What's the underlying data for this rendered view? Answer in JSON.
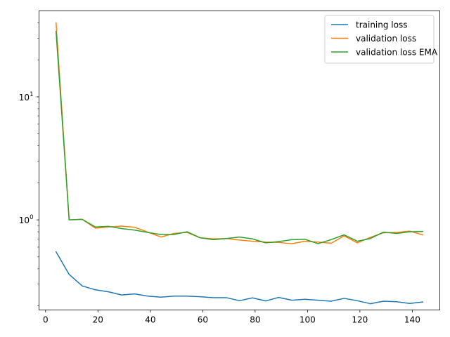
{
  "chart_data": {
    "type": "line",
    "title": "",
    "xlabel": "",
    "ylabel": "",
    "xlim": [
      -2.5,
      150.5
    ],
    "ylim": [
      0.185,
      50
    ],
    "yscale": "log",
    "x_ticks": [
      {
        "value": 0,
        "label": "0"
      },
      {
        "value": 20,
        "label": "20"
      },
      {
        "value": 40,
        "label": "40"
      },
      {
        "value": 60,
        "label": "60"
      },
      {
        "value": 80,
        "label": "80"
      },
      {
        "value": 100,
        "label": "100"
      },
      {
        "value": 120,
        "label": "120"
      },
      {
        "value": 140,
        "label": "140"
      }
    ],
    "y_major_ticks": [
      {
        "value": 1,
        "base": "10",
        "exp": "0"
      },
      {
        "value": 10,
        "base": "10",
        "exp": "1"
      }
    ],
    "y_minor_ticks": [
      0.2,
      0.3,
      0.4,
      0.5,
      0.6,
      0.7,
      0.8,
      0.9,
      2,
      3,
      4,
      5,
      6,
      7,
      8,
      9,
      20,
      30,
      40
    ],
    "grid": false,
    "legend_position": "top-right",
    "x": [
      4,
      9,
      14,
      19,
      24,
      29,
      34,
      39,
      44,
      49,
      54,
      59,
      64,
      69,
      74,
      79,
      84,
      89,
      94,
      99,
      104,
      109,
      114,
      119,
      124,
      129,
      134,
      139,
      144
    ],
    "series": [
      {
        "name": "training loss",
        "color": "#1f77b4",
        "values": [
          0.55,
          0.36,
          0.29,
          0.27,
          0.26,
          0.245,
          0.25,
          0.24,
          0.235,
          0.24,
          0.24,
          0.237,
          0.233,
          0.233,
          0.22,
          0.232,
          0.219,
          0.234,
          0.222,
          0.226,
          0.222,
          0.218,
          0.23,
          0.22,
          0.208,
          0.218,
          0.216,
          0.209,
          0.215
        ]
      },
      {
        "name": "validation loss",
        "color": "#ff7f0e",
        "values": [
          40,
          1.0,
          1.01,
          0.855,
          0.875,
          0.89,
          0.87,
          0.795,
          0.725,
          0.775,
          0.79,
          0.715,
          0.7,
          0.705,
          0.685,
          0.67,
          0.66,
          0.655,
          0.64,
          0.67,
          0.66,
          0.645,
          0.74,
          0.65,
          0.72,
          0.785,
          0.79,
          0.81,
          0.755
        ]
      },
      {
        "name": "validation loss EMA",
        "color": "#2ca02c",
        "values": [
          34,
          1.0,
          1.01,
          0.875,
          0.885,
          0.85,
          0.825,
          0.79,
          0.76,
          0.76,
          0.8,
          0.715,
          0.69,
          0.705,
          0.725,
          0.7,
          0.65,
          0.665,
          0.69,
          0.695,
          0.64,
          0.69,
          0.755,
          0.67,
          0.705,
          0.795,
          0.775,
          0.8,
          0.805
        ]
      }
    ]
  }
}
